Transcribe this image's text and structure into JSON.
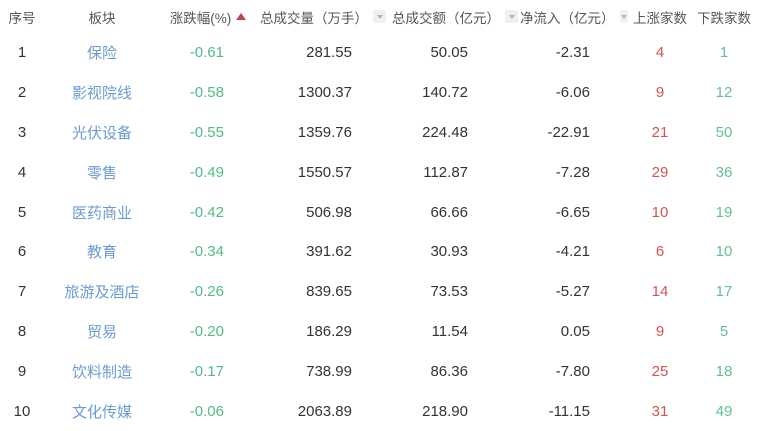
{
  "colors": {
    "header_text": "#555555",
    "body_text": "#333333",
    "sector_link": "#6b9bd2",
    "decline_green": "#53bb87",
    "rise_red": "#d0564e",
    "sort_arrow_red": "#bf4350",
    "sort_icon_bg": "#f0f0f0",
    "sort_icon_caret": "#b5b5b5"
  },
  "table": {
    "columns": [
      {
        "label": "序号",
        "sortable": false,
        "sort": "none"
      },
      {
        "label": "板块",
        "sortable": false,
        "sort": "none"
      },
      {
        "label": "涨跌幅(%)",
        "sortable": true,
        "sort": "asc"
      },
      {
        "label": "总成交量（万手）",
        "sortable": true,
        "sort": "none"
      },
      {
        "label": "总成交额（亿元）",
        "sortable": true,
        "sort": "none"
      },
      {
        "label": "净流入（亿元）",
        "sortable": true,
        "sort": "none"
      },
      {
        "label": "上涨家数",
        "sortable": false,
        "sort": "none"
      },
      {
        "label": "下跌家数",
        "sortable": false,
        "sort": "none"
      }
    ],
    "rows": [
      {
        "index": "1",
        "sector": "保险",
        "change": "-0.61",
        "volume": "281.55",
        "turnover": "50.05",
        "netinflow": "-2.31",
        "gainers": "4",
        "losers": "1"
      },
      {
        "index": "2",
        "sector": "影视院线",
        "change": "-0.58",
        "volume": "1300.37",
        "turnover": "140.72",
        "netinflow": "-6.06",
        "gainers": "9",
        "losers": "12"
      },
      {
        "index": "3",
        "sector": "光伏设备",
        "change": "-0.55",
        "volume": "1359.76",
        "turnover": "224.48",
        "netinflow": "-22.91",
        "gainers": "21",
        "losers": "50"
      },
      {
        "index": "4",
        "sector": "零售",
        "change": "-0.49",
        "volume": "1550.57",
        "turnover": "112.87",
        "netinflow": "-7.28",
        "gainers": "29",
        "losers": "36"
      },
      {
        "index": "5",
        "sector": "医药商业",
        "change": "-0.42",
        "volume": "506.98",
        "turnover": "66.66",
        "netinflow": "-6.65",
        "gainers": "10",
        "losers": "19"
      },
      {
        "index": "6",
        "sector": "教育",
        "change": "-0.34",
        "volume": "391.62",
        "turnover": "30.93",
        "netinflow": "-4.21",
        "gainers": "6",
        "losers": "10"
      },
      {
        "index": "7",
        "sector": "旅游及酒店",
        "change": "-0.26",
        "volume": "839.65",
        "turnover": "73.53",
        "netinflow": "-5.27",
        "gainers": "14",
        "losers": "17"
      },
      {
        "index": "8",
        "sector": "贸易",
        "change": "-0.20",
        "volume": "186.29",
        "turnover": "11.54",
        "netinflow": "0.05",
        "gainers": "9",
        "losers": "5"
      },
      {
        "index": "9",
        "sector": "饮料制造",
        "change": "-0.17",
        "volume": "738.99",
        "turnover": "86.36",
        "netinflow": "-7.80",
        "gainers": "25",
        "losers": "18"
      },
      {
        "index": "10",
        "sector": "文化传媒",
        "change": "-0.06",
        "volume": "2063.89",
        "turnover": "218.90",
        "netinflow": "-11.15",
        "gainers": "31",
        "losers": "49"
      }
    ]
  }
}
